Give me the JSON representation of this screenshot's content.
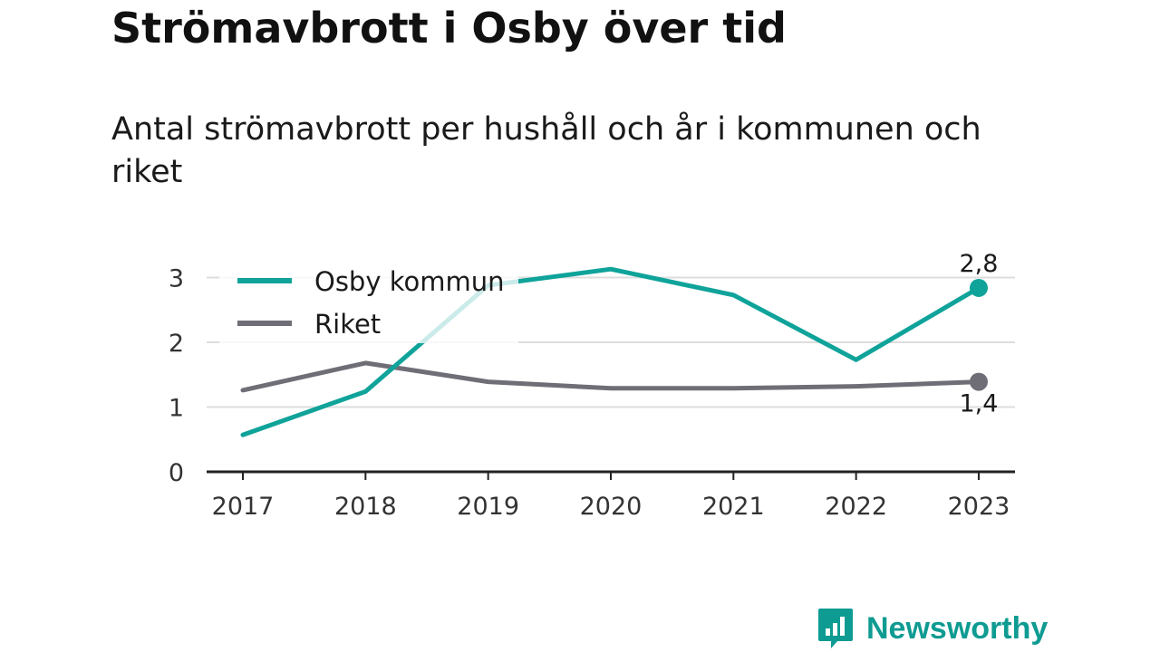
{
  "title": "Strömavbrott i Osby över tid",
  "subtitle": "Antal strömavbrott per hushåll och år i kommunen och riket",
  "brand": {
    "name": "Newsworthy",
    "logo_icon": "bar-chart-speech-bubble-icon"
  },
  "colors": {
    "osby": "#0fa39a",
    "riket": "#6f6e76",
    "grid": "#dddddd",
    "axis": "#222222",
    "brand": "#0e9b92"
  },
  "chart_data": {
    "type": "line",
    "x": [
      "2017",
      "2018",
      "2019",
      "2020",
      "2021",
      "2022",
      "2023"
    ],
    "series": [
      {
        "name": "Osby kommun",
        "values": [
          0.57,
          1.24,
          2.88,
          3.13,
          2.73,
          1.73,
          2.84
        ],
        "end_label": "2,8"
      },
      {
        "name": "Riket",
        "values": [
          1.26,
          1.68,
          1.39,
          1.29,
          1.29,
          1.32,
          1.39
        ],
        "end_label": "1,4"
      }
    ],
    "yticks": [
      "0",
      "1",
      "2",
      "3"
    ],
    "ylim": [
      0,
      3
    ],
    "grid": true,
    "legend": "top-left"
  }
}
